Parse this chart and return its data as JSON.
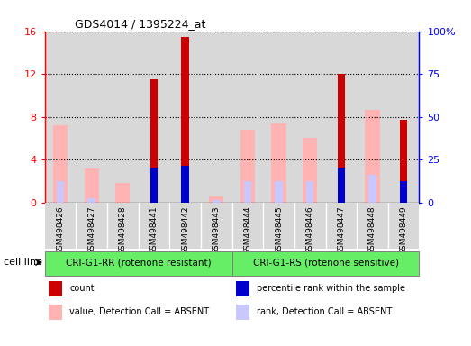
{
  "title": "GDS4014 / 1395224_at",
  "samples": [
    "GSM498426",
    "GSM498427",
    "GSM498428",
    "GSM498441",
    "GSM498442",
    "GSM498443",
    "GSM498444",
    "GSM498445",
    "GSM498446",
    "GSM498447",
    "GSM498448",
    "GSM498449"
  ],
  "count": [
    0,
    0,
    0,
    11.5,
    15.5,
    0,
    0,
    0,
    0,
    12.0,
    0,
    7.7
  ],
  "percentile_rank": [
    0,
    0,
    0,
    3.2,
    3.4,
    0,
    0,
    0,
    0,
    3.2,
    0,
    2.0
  ],
  "value_absent": [
    7.2,
    3.2,
    1.8,
    0,
    0,
    0.6,
    6.8,
    7.4,
    6.0,
    0,
    8.6,
    0
  ],
  "rank_absent": [
    2.0,
    0.4,
    0,
    0,
    0,
    0.2,
    2.0,
    2.0,
    2.0,
    0,
    2.6,
    0
  ],
  "count_color": "#cc0000",
  "percentile_color": "#0000cc",
  "value_absent_color": "#ffb3b3",
  "rank_absent_color": "#c8c8ff",
  "ylim_left": [
    0,
    16
  ],
  "ylim_right": [
    0,
    100
  ],
  "yticks_left": [
    0,
    4,
    8,
    12,
    16
  ],
  "yticks_right": [
    0,
    25,
    50,
    75,
    100
  ],
  "ytick_labels_right": [
    "0",
    "25",
    "50",
    "75",
    "100%"
  ],
  "group1_label": "CRI-G1-RR (rotenone resistant)",
  "group2_label": "CRI-G1-RS (rotenone sensitive)",
  "group1_indices": [
    0,
    1,
    2,
    3,
    4,
    5
  ],
  "group2_indices": [
    6,
    7,
    8,
    9,
    10,
    11
  ],
  "cell_line_label": "cell line",
  "col_bg_color": "#d8d8d8",
  "group_box_color": "#66ee66",
  "legend_items": [
    {
      "label": "count",
      "color": "#cc0000"
    },
    {
      "label": "percentile rank within the sample",
      "color": "#0000cc"
    },
    {
      "label": "value, Detection Call = ABSENT",
      "color": "#ffb3b3"
    },
    {
      "label": "rank, Detection Call = ABSENT",
      "color": "#c8c8ff"
    }
  ]
}
